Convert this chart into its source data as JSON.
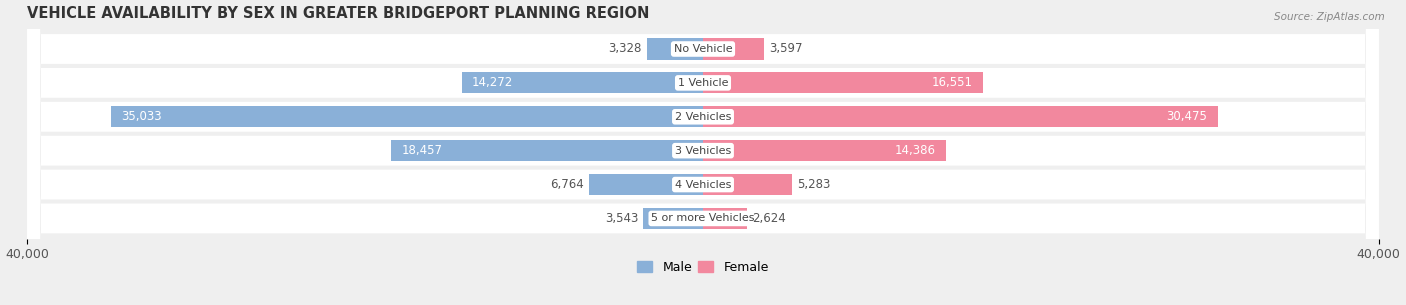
{
  "title": "VEHICLE AVAILABILITY BY SEX IN GREATER BRIDGEPORT PLANNING REGION",
  "source": "Source: ZipAtlas.com",
  "categories": [
    "No Vehicle",
    "1 Vehicle",
    "2 Vehicles",
    "3 Vehicles",
    "4 Vehicles",
    "5 or more Vehicles"
  ],
  "male_values": [
    3328,
    14272,
    35033,
    18457,
    6764,
    3543
  ],
  "female_values": [
    3597,
    16551,
    30475,
    14386,
    5283,
    2624
  ],
  "male_color": "#8ab0d8",
  "female_color": "#f2889e",
  "male_label": "Male",
  "female_label": "Female",
  "xlim": 40000,
  "background_color": "#efefef",
  "row_bg_color": "#ffffff",
  "title_fontsize": 10.5,
  "label_fontsize": 8.5,
  "tick_fontsize": 9,
  "inside_label_threshold": 8000
}
